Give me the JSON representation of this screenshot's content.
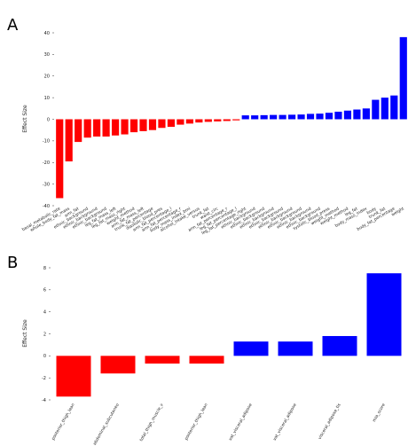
{
  "colors": {
    "negative": "#ff0000",
    "positive": "#0000ff"
  },
  "chart_data": [
    {
      "panel": "A",
      "type": "bar",
      "ylabel": "Effect Size",
      "ylim": [
        -40,
        40
      ],
      "yticks": [
        -40,
        -30,
        -20,
        -10,
        0,
        10,
        20,
        30,
        40
      ],
      "categories": [
        "basal_metabolic_rate",
        "whole_body_fat_mass",
        "arm_fat",
        "ethnic_background",
        "ethnic_background",
        "ethnic_background",
        "leg_fat_mass_left",
        "leg_fat_mass_right",
        "weight_method",
        "arm_fat_mass_left",
        "trunk_fat_percentage",
        "diastolic_blood_pres",
        "arm_fat_percentage_l",
        "arm_fat_percentage_r",
        "body_mass_index_bmi",
        "alcohol_intake_versus",
        "trunk_fat",
        "waist_circ",
        "arm_fat_percentage_r",
        "leg_fat_percentage_l",
        "leg_fat_percentage_right",
        "ethnic_background",
        "ethnic_background",
        "ethnic_background",
        "ethnic_background",
        "ethnic_background",
        "ethnic_background",
        "ethnic_background",
        "ethnic_background",
        "systolic_blood_press",
        "weight_method",
        "weight_method",
        "leg_fat",
        "body_mass_index",
        "body",
        "trunk_fat",
        "body_fat_percentage",
        "weight"
      ],
      "values": [
        -36.5,
        -19.5,
        -10.5,
        -8.5,
        -8.0,
        -8.0,
        -7.5,
        -7.0,
        -6.0,
        -5.5,
        -5.0,
        -4.0,
        -3.5,
        -2.5,
        -2.0,
        -1.5,
        -1.2,
        -1.0,
        -0.8,
        -0.5,
        1.8,
        1.8,
        1.9,
        2.0,
        2.0,
        2.1,
        2.2,
        2.5,
        2.6,
        3.0,
        3.5,
        4.0,
        4.5,
        5.0,
        9.0,
        10.0,
        11.0,
        38.0
      ]
    },
    {
      "panel": "B",
      "type": "bar",
      "ylabel": "Effect Size",
      "ylim": [
        -4,
        8
      ],
      "yticks": [
        -4,
        -2,
        0,
        2,
        4,
        6,
        8
      ],
      "categories": [
        "posterior_thigh_lean",
        "abdominal_subcutaneo",
        "total_thigh_muscle_v",
        "posterior_thigh_lean",
        "vat_visceral_adipose",
        "vat_visceral_adipose",
        "visceral_adipose_tis",
        "mia_score"
      ],
      "values": [
        -3.7,
        -1.6,
        -0.7,
        -0.7,
        1.3,
        1.3,
        1.8,
        7.5
      ]
    }
  ]
}
